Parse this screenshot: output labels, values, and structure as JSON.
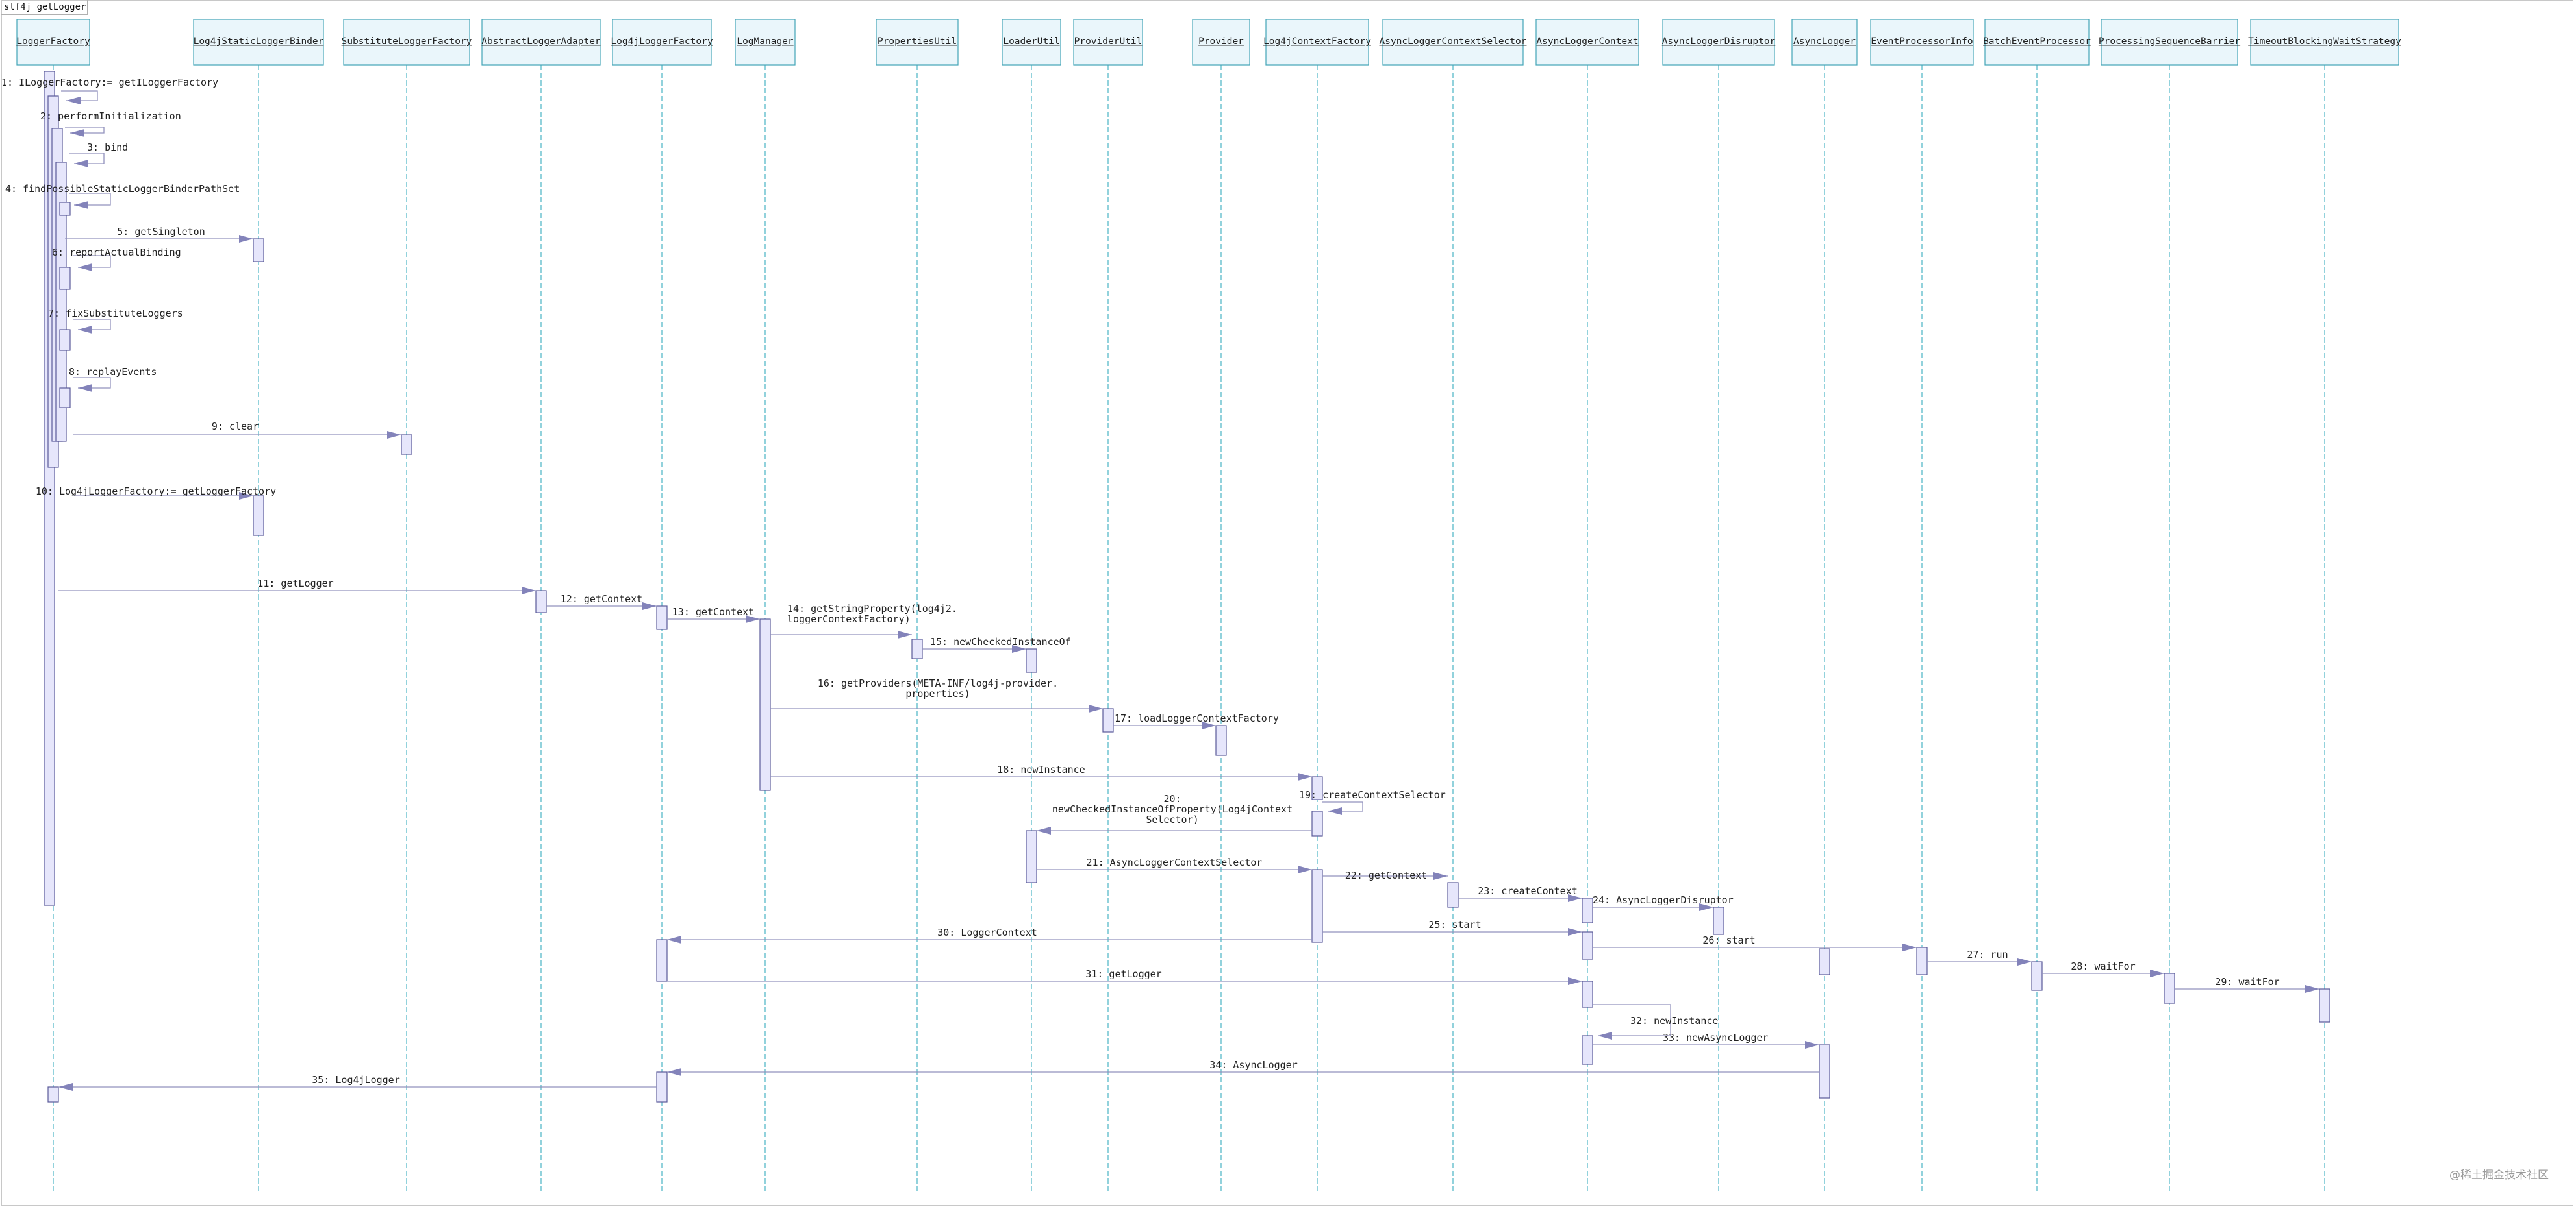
{
  "diagram": {
    "title": "slf4j_getLogger",
    "participants": [
      "LoggerFactory",
      "Log4jStaticLoggerBinder",
      "SubstituteLoggerFactory",
      "AbstractLoggerAdapter",
      "Log4jLoggerFactory",
      "LogManager",
      "PropertiesUtil",
      "LoaderUtil",
      "ProviderUtil",
      "Provider",
      "Log4jContextFactory",
      "AsyncLoggerContextSelector",
      "AsyncLoggerContext",
      "AsyncLoggerDisruptor",
      "AsyncLogger",
      "EventProcessorInfo",
      "BatchEventProcessor",
      "ProcessingSequenceBarrier",
      "TimeoutBlockingWaitStrategy"
    ],
    "messages": [
      {
        "n": 1,
        "label": "1: ILoggerFactory:= getILoggerFactory",
        "from": "LoggerFactory",
        "to": "LoggerFactory"
      },
      {
        "n": 2,
        "label": "2: performInitialization",
        "from": "LoggerFactory",
        "to": "LoggerFactory"
      },
      {
        "n": 3,
        "label": "3: bind",
        "from": "LoggerFactory",
        "to": "LoggerFactory"
      },
      {
        "n": 4,
        "label": "4: findPossibleStaticLoggerBinderPathSet",
        "from": "LoggerFactory",
        "to": "LoggerFactory"
      },
      {
        "n": 5,
        "label": "5: getSingleton",
        "from": "LoggerFactory",
        "to": "Log4jStaticLoggerBinder"
      },
      {
        "n": 6,
        "label": "6: reportActualBinding",
        "from": "LoggerFactory",
        "to": "LoggerFactory"
      },
      {
        "n": 7,
        "label": "7: fixSubstituteLoggers",
        "from": "LoggerFactory",
        "to": "LoggerFactory"
      },
      {
        "n": 8,
        "label": "8: replayEvents",
        "from": "LoggerFactory",
        "to": "LoggerFactory"
      },
      {
        "n": 9,
        "label": "9: clear",
        "from": "LoggerFactory",
        "to": "SubstituteLoggerFactory"
      },
      {
        "n": 10,
        "label": "10: Log4jLoggerFactory:= getLoggerFactory",
        "from": "LoggerFactory",
        "to": "Log4jStaticLoggerBinder"
      },
      {
        "n": 11,
        "label": "11: getLogger",
        "from": "LoggerFactory",
        "to": "AbstractLoggerAdapter"
      },
      {
        "n": 12,
        "label": "12: getContext",
        "from": "AbstractLoggerAdapter",
        "to": "Log4jLoggerFactory"
      },
      {
        "n": 13,
        "label": "13: getContext",
        "from": "Log4jLoggerFactory",
        "to": "LogManager"
      },
      {
        "n": 14,
        "label": "14: getStringProperty(log4j2.\nloggerContextFactory)",
        "from": "LogManager",
        "to": "PropertiesUtil"
      },
      {
        "n": 15,
        "label": "15: newCheckedInstanceOf",
        "from": "PropertiesUtil",
        "to": "LoaderUtil"
      },
      {
        "n": 16,
        "label": "16: getProviders(META-INF/log4j-provider.\nproperties)",
        "from": "LogManager",
        "to": "ProviderUtil"
      },
      {
        "n": 17,
        "label": "17: loadLoggerContextFactory",
        "from": "ProviderUtil",
        "to": "Provider"
      },
      {
        "n": 18,
        "label": "18: newInstance",
        "from": "LogManager",
        "to": "Log4jContextFactory"
      },
      {
        "n": 19,
        "label": "19: createContextSelector",
        "from": "Log4jContextFactory",
        "to": "Log4jContextFactory"
      },
      {
        "n": 20,
        "label": "20:\nnewCheckedInstanceOfProperty(Log4jContext\nSelector)",
        "from": "Log4jContextFactory",
        "to": "LoaderUtil"
      },
      {
        "n": 21,
        "label": "21: AsyncLoggerContextSelector",
        "from": "LoaderUtil",
        "to": "Log4jContextFactory"
      },
      {
        "n": 22,
        "label": "22: getContext",
        "from": "Log4jContextFactory",
        "to": "AsyncLoggerContextSelector"
      },
      {
        "n": 23,
        "label": "23: createContext",
        "from": "AsyncLoggerContextSelector",
        "to": "AsyncLoggerContext"
      },
      {
        "n": 24,
        "label": "24: AsyncLoggerDisruptor",
        "from": "AsyncLoggerContext",
        "to": "AsyncLoggerDisruptor"
      },
      {
        "n": 25,
        "label": "25: start",
        "from": "Log4jContextFactory",
        "to": "AsyncLoggerContext"
      },
      {
        "n": 26,
        "label": "26: start",
        "from": "AsyncLoggerContext",
        "to": "EventProcessorInfo"
      },
      {
        "n": 27,
        "label": "27: run",
        "from": "EventProcessorInfo",
        "to": "BatchEventProcessor"
      },
      {
        "n": 28,
        "label": "28: waitFor",
        "from": "BatchEventProcessor",
        "to": "ProcessingSequenceBarrier"
      },
      {
        "n": 29,
        "label": "29: waitFor",
        "from": "ProcessingSequenceBarrier",
        "to": "TimeoutBlockingWaitStrategy"
      },
      {
        "n": 30,
        "label": "30: LoggerContext",
        "from": "Log4jContextFactory",
        "to": "Log4jLoggerFactory"
      },
      {
        "n": 31,
        "label": "31: getLogger",
        "from": "Log4jLoggerFactory",
        "to": "AsyncLoggerContext"
      },
      {
        "n": 32,
        "label": "32: newInstance",
        "from": "AsyncLoggerContext",
        "to": "AsyncLoggerContext"
      },
      {
        "n": 33,
        "label": "33: newAsyncLogger",
        "from": "AsyncLoggerContext",
        "to": "AsyncLogger"
      },
      {
        "n": 34,
        "label": "34: AsyncLogger",
        "from": "AsyncLogger",
        "to": "Log4jLoggerFactory"
      },
      {
        "n": 35,
        "label": "35: Log4jLogger",
        "from": "Log4jLoggerFactory",
        "to": "LoggerFactory"
      }
    ]
  },
  "watermark": "@稀土掘金技术社区",
  "colors": {
    "header_fill": "#eaf6fb",
    "header_border": "#43a5b8",
    "lifeline": "#4ab3c4",
    "activation_fill": "#e6e6fb",
    "message_line": "#9292bd"
  }
}
